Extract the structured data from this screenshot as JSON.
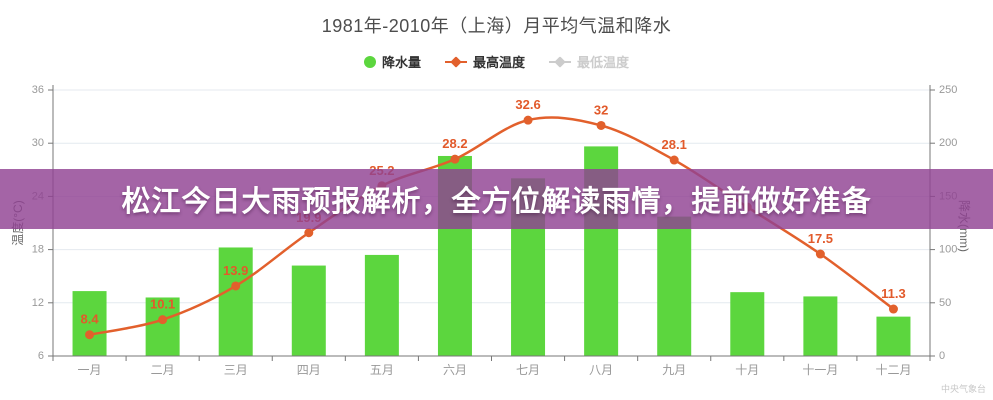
{
  "chart": {
    "title": "1981年-2010年（上海）月平均气温和降水",
    "legend": [
      {
        "label": "降水量",
        "marker": "circle",
        "color": "#5cd63e",
        "active": true
      },
      {
        "label": "最高温度",
        "marker": "line-diamond",
        "color": "#e2602c",
        "active": true
      },
      {
        "label": "最低温度",
        "marker": "line-diamond",
        "color": "#cccccc",
        "active": false
      }
    ],
    "watermark": "中央气象台"
  },
  "banner": {
    "text": "松江今日大雨预报解析，全方位解读雨情，提前做好准备",
    "bg_color": "rgba(144,66,147,0.82)",
    "text_color": "#ffffff"
  },
  "chart_data": {
    "type": "bar+line",
    "categories": [
      "一月",
      "二月",
      "三月",
      "四月",
      "五月",
      "六月",
      "七月",
      "八月",
      "九月",
      "十月",
      "十一月",
      "十二月"
    ],
    "axes": {
      "left": {
        "name": "温度(°C)",
        "min": 6,
        "max": 36,
        "ticks": [
          36,
          30,
          24,
          18,
          12,
          6
        ]
      },
      "right": {
        "name": "降水(mm)",
        "min": 0,
        "max": 250,
        "ticks": [
          250,
          200,
          150,
          100,
          50,
          0
        ]
      }
    },
    "grid": true,
    "legend_position": "top",
    "series": [
      {
        "name": "降水量",
        "type": "bar",
        "axis": "right",
        "unit": "mm",
        "color": "#5cd63e",
        "values": [
          61,
          55,
          102,
          85,
          95,
          188,
          167,
          197,
          131,
          60,
          56,
          37
        ]
      },
      {
        "name": "最高温度",
        "type": "line",
        "axis": "left",
        "unit": "°C",
        "color": "#e2602c",
        "values": [
          8.4,
          10.1,
          13.9,
          19.9,
          25.2,
          28.2,
          32.6,
          32,
          28.1,
          22.8,
          17.5,
          11.3
        ],
        "point_labels": [
          "8.4",
          "10.1",
          "13.9",
          "19.9",
          "25.2",
          "28.2",
          "32.6",
          "32",
          "28.1",
          "",
          "17.5",
          "11.3"
        ]
      },
      {
        "name": "最低温度",
        "type": "line",
        "axis": "left",
        "unit": "°C",
        "color": "#cccccc",
        "hidden": true,
        "values": []
      }
    ],
    "colors": {
      "grid_line": "#e4eaef",
      "axis_line": "#777777",
      "tick_label": "#999999",
      "axis_name": "#666666",
      "point_label": "#e25a2b"
    }
  }
}
